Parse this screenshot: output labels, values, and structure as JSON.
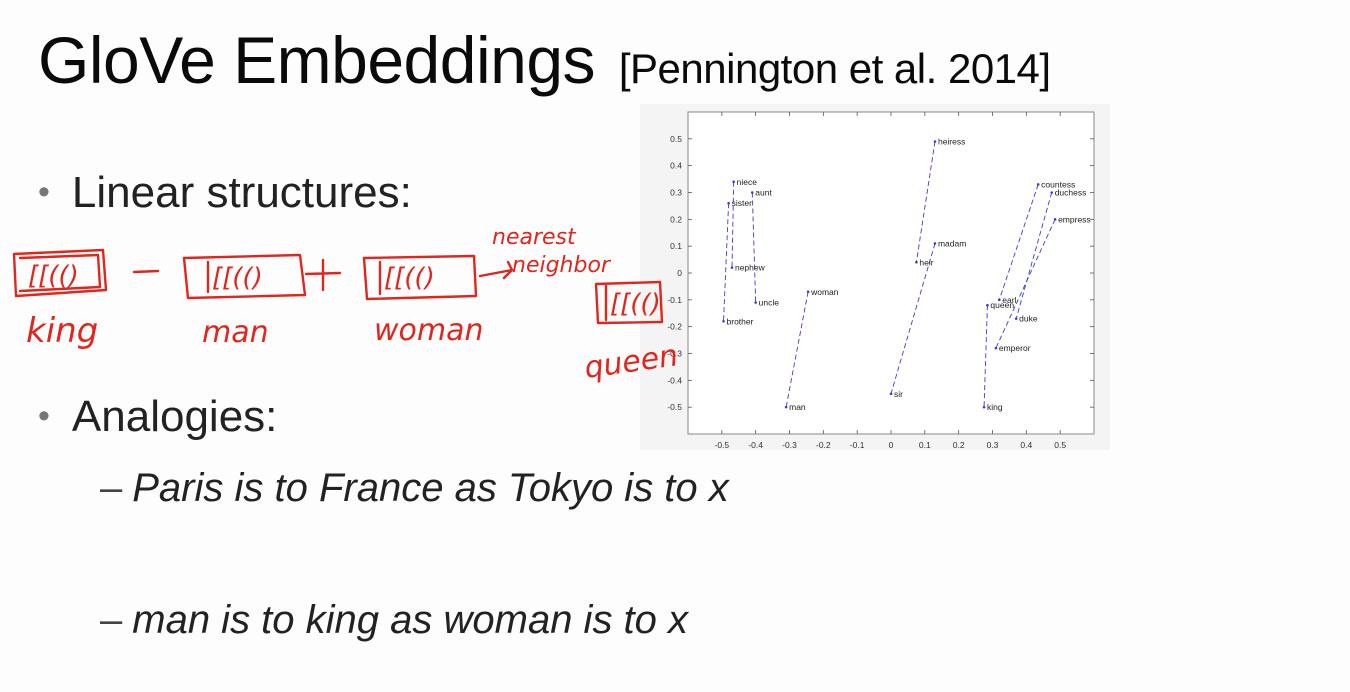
{
  "slide": {
    "title": "GloVe Embeddings",
    "citation": "[Pennington et al. 2014]",
    "bullets": [
      {
        "text": "Linear structures:"
      },
      {
        "text": "Analogies:",
        "subitems": [
          "Paris is to France as Tokyo is to x",
          "man is to king as woman is to x"
        ]
      }
    ],
    "bullet_symbol": "•",
    "dash_symbol": "–"
  },
  "annotations": {
    "ink_color": "#e0261d",
    "box_scribble": "[[(()",
    "labels": [
      "king",
      "man",
      "woman",
      "queen"
    ],
    "operators": [
      "−",
      "+"
    ],
    "note": "nearest neighbor"
  },
  "chart_data": {
    "type": "scatter",
    "title": "",
    "xlabel": "",
    "ylabel": "",
    "xlim": [
      -0.6,
      0.6
    ],
    "ylim": [
      -0.6,
      0.6
    ],
    "xticks": [
      "-0.5",
      "-0.4",
      "-0.3",
      "-0.2",
      "-0.1",
      "0",
      "0.1",
      "0.2",
      "0.3",
      "0.4",
      "0.5"
    ],
    "yticks": [
      "0.5",
      "0.4",
      "0.3",
      "0.2",
      "0.1",
      "0",
      "-0.1",
      "-0.2",
      "-0.3",
      "-0.4",
      "-0.5"
    ],
    "xtick_values": [
      -0.5,
      -0.4,
      -0.3,
      -0.2,
      -0.1,
      0,
      0.1,
      0.2,
      0.3,
      0.4,
      0.5
    ],
    "ytick_values": [
      0.5,
      0.4,
      0.3,
      0.2,
      0.1,
      0,
      -0.1,
      -0.2,
      -0.3,
      -0.4,
      -0.5
    ],
    "points": [
      {
        "label": "niece",
        "x": -0.465,
        "y": 0.34
      },
      {
        "label": "aunt",
        "x": -0.41,
        "y": 0.3
      },
      {
        "label": "sister",
        "x": -0.48,
        "y": 0.26
      },
      {
        "label": "nephew",
        "x": -0.47,
        "y": 0.02
      },
      {
        "label": "uncle",
        "x": -0.4,
        "y": -0.11
      },
      {
        "label": "brother",
        "x": -0.495,
        "y": -0.18
      },
      {
        "label": "woman",
        "x": -0.245,
        "y": -0.07
      },
      {
        "label": "man",
        "x": -0.31,
        "y": -0.5
      },
      {
        "label": "heiress",
        "x": 0.13,
        "y": 0.49
      },
      {
        "label": "madam",
        "x": 0.13,
        "y": 0.11
      },
      {
        "label": "heir",
        "x": 0.075,
        "y": 0.04
      },
      {
        "label": "sir",
        "x": 0.0,
        "y": -0.45
      },
      {
        "label": "countess",
        "x": 0.435,
        "y": 0.33
      },
      {
        "label": "duchess",
        "x": 0.475,
        "y": 0.3
      },
      {
        "label": "empress",
        "x": 0.485,
        "y": 0.2
      },
      {
        "label": "earl",
        "x": 0.32,
        "y": -0.1
      },
      {
        "label": "queen",
        "x": 0.285,
        "y": -0.12
      },
      {
        "label": "duke",
        "x": 0.37,
        "y": -0.17
      },
      {
        "label": "emperor",
        "x": 0.31,
        "y": -0.28
      },
      {
        "label": "king",
        "x": 0.275,
        "y": -0.5
      }
    ],
    "pairs": [
      [
        "niece",
        "nephew"
      ],
      [
        "aunt",
        "uncle"
      ],
      [
        "sister",
        "brother"
      ],
      [
        "woman",
        "man"
      ],
      [
        "heiress",
        "heir"
      ],
      [
        "madam",
        "sir"
      ],
      [
        "countess",
        "earl"
      ],
      [
        "duchess",
        "duke"
      ],
      [
        "empress",
        "emperor"
      ],
      [
        "queen",
        "king"
      ]
    ],
    "line_color": "#3b3bd6",
    "grid": false
  }
}
